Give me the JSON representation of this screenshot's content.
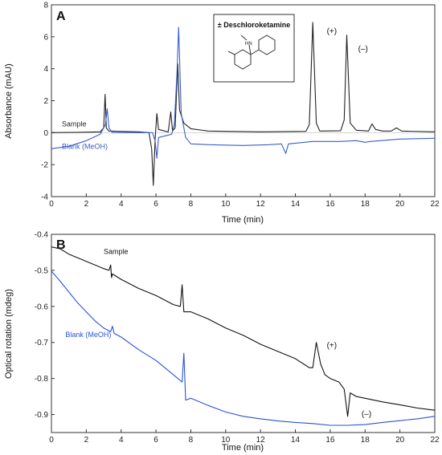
{
  "chart_data": [
    {
      "panel_label": "A",
      "type": "line",
      "xlabel": "Time (min)",
      "ylabel": "Absorbance (mAU)",
      "xlim": [
        0,
        22
      ],
      "ylim": [
        -4,
        8
      ],
      "xticks": [
        0,
        2,
        4,
        6,
        8,
        10,
        12,
        14,
        16,
        18,
        20,
        22
      ],
      "yticks": [
        -4,
        -2,
        0,
        2,
        4,
        6,
        8
      ],
      "grid": false,
      "inset_title": "± Deschloroketamine",
      "inset_atom_label": "HN",
      "annotations": [
        {
          "text": "(+)",
          "x": 15.8,
          "y": 6.2
        },
        {
          "text": "(–)",
          "x": 17.6,
          "y": 5.1
        }
      ],
      "series": [
        {
          "name": "Sample",
          "color": "#222222",
          "label_pos": [
            0.6,
            0.4
          ],
          "points": [
            [
              0,
              0
            ],
            [
              1.5,
              0.02
            ],
            [
              2.8,
              0.05
            ],
            [
              3.0,
              0.3
            ],
            [
              3.08,
              2.4
            ],
            [
              3.15,
              0.3
            ],
            [
              3.3,
              0.1
            ],
            [
              5.0,
              0.05
            ],
            [
              5.6,
              0.0
            ],
            [
              5.75,
              -1.0
            ],
            [
              5.85,
              -3.3
            ],
            [
              5.95,
              -0.4
            ],
            [
              6.05,
              1.2
            ],
            [
              6.15,
              0.2
            ],
            [
              6.7,
              0.05
            ],
            [
              6.85,
              1.3
            ],
            [
              6.95,
              0.1
            ],
            [
              7.1,
              0.3
            ],
            [
              7.25,
              4.3
            ],
            [
              7.35,
              1.4
            ],
            [
              7.6,
              0.6
            ],
            [
              8.0,
              0.25
            ],
            [
              9.0,
              0.1
            ],
            [
              12.0,
              0.05
            ],
            [
              14.6,
              0.08
            ],
            [
              14.8,
              0.5
            ],
            [
              15.0,
              6.9
            ],
            [
              15.2,
              0.6
            ],
            [
              15.4,
              0.1
            ],
            [
              16.6,
              0.12
            ],
            [
              16.8,
              0.8
            ],
            [
              16.95,
              6.1
            ],
            [
              17.15,
              0.6
            ],
            [
              17.5,
              0.15
            ],
            [
              18.2,
              0.1
            ],
            [
              18.4,
              0.55
            ],
            [
              18.6,
              0.2
            ],
            [
              19.0,
              0.1
            ],
            [
              19.5,
              0.1
            ],
            [
              19.8,
              0.3
            ],
            [
              20.1,
              0.1
            ],
            [
              22,
              0.05
            ]
          ]
        },
        {
          "name": "Blank (MeOH)",
          "color": "#3a5fc8",
          "label_pos": [
            0.6,
            -1.0
          ],
          "points": [
            [
              0,
              -1.0
            ],
            [
              1.0,
              -0.85
            ],
            [
              2.0,
              -0.5
            ],
            [
              2.8,
              -0.1
            ],
            [
              3.1,
              0.5
            ],
            [
              3.2,
              1.5
            ],
            [
              3.3,
              0.3
            ],
            [
              3.5,
              0.0
            ],
            [
              5.8,
              0.0
            ],
            [
              5.95,
              -0.5
            ],
            [
              6.05,
              -1.6
            ],
            [
              6.15,
              -0.3
            ],
            [
              6.9,
              -0.1
            ],
            [
              7.05,
              0.5
            ],
            [
              7.2,
              3.6
            ],
            [
              7.3,
              6.6
            ],
            [
              7.45,
              1.2
            ],
            [
              7.7,
              -0.3
            ],
            [
              8.0,
              -0.7
            ],
            [
              9.0,
              -0.75
            ],
            [
              11.0,
              -0.8
            ],
            [
              12.5,
              -0.75
            ],
            [
              13.2,
              -0.7
            ],
            [
              13.45,
              -1.3
            ],
            [
              13.6,
              -0.7
            ],
            [
              15.0,
              -0.55
            ],
            [
              16.5,
              -0.55
            ],
            [
              17.5,
              -0.5
            ],
            [
              18.0,
              -0.6
            ],
            [
              18.3,
              -0.55
            ],
            [
              20.0,
              -0.4
            ],
            [
              22,
              -0.35
            ]
          ]
        }
      ]
    },
    {
      "panel_label": "B",
      "type": "line",
      "xlabel": "Time (min)",
      "ylabel": "Optical rotation (mdeg)",
      "xlim": [
        0,
        22
      ],
      "ylim": [
        -0.95,
        -0.4
      ],
      "xticks": [
        0,
        2,
        4,
        6,
        8,
        10,
        12,
        14,
        16,
        18,
        20,
        22
      ],
      "yticks": [
        -0.9,
        -0.8,
        -0.7,
        -0.6,
        -0.5,
        -0.4
      ],
      "grid": false,
      "annotations": [
        {
          "text": "(+)",
          "x": 15.8,
          "y": -0.715
        },
        {
          "text": "(–)",
          "x": 17.8,
          "y": -0.905
        }
      ],
      "series": [
        {
          "name": "Sample",
          "color": "#111111",
          "label_pos": [
            3.0,
            -0.455
          ],
          "points": [
            [
              0,
              -0.435
            ],
            [
              0.5,
              -0.44
            ],
            [
              1.0,
              -0.455
            ],
            [
              2.0,
              -0.475
            ],
            [
              3.0,
              -0.495
            ],
            [
              3.3,
              -0.5
            ],
            [
              3.4,
              -0.485
            ],
            [
              3.45,
              -0.52
            ],
            [
              3.5,
              -0.51
            ],
            [
              4.0,
              -0.525
            ],
            [
              5.0,
              -0.55
            ],
            [
              6.0,
              -0.57
            ],
            [
              7.0,
              -0.595
            ],
            [
              7.4,
              -0.6
            ],
            [
              7.5,
              -0.54
            ],
            [
              7.6,
              -0.615
            ],
            [
              8.0,
              -0.615
            ],
            [
              9.0,
              -0.635
            ],
            [
              10.0,
              -0.66
            ],
            [
              11.0,
              -0.68
            ],
            [
              12.0,
              -0.705
            ],
            [
              13.0,
              -0.725
            ],
            [
              14.0,
              -0.745
            ],
            [
              14.8,
              -0.77
            ],
            [
              15.0,
              -0.77
            ],
            [
              15.2,
              -0.7
            ],
            [
              15.45,
              -0.76
            ],
            [
              15.7,
              -0.79
            ],
            [
              16.0,
              -0.8
            ],
            [
              16.5,
              -0.81
            ],
            [
              16.8,
              -0.83
            ],
            [
              17.0,
              -0.905
            ],
            [
              17.15,
              -0.84
            ],
            [
              17.5,
              -0.85
            ],
            [
              18.0,
              -0.855
            ],
            [
              19.0,
              -0.865
            ],
            [
              20.0,
              -0.873
            ],
            [
              21.0,
              -0.882
            ],
            [
              22,
              -0.888
            ]
          ]
        },
        {
          "name": "Blank (MeOH)",
          "color": "#2a52d6",
          "label_pos": [
            0.8,
            -0.685
          ],
          "points": [
            [
              0,
              -0.502
            ],
            [
              0.5,
              -0.53
            ],
            [
              1.0,
              -0.56
            ],
            [
              1.5,
              -0.59
            ],
            [
              2.0,
              -0.615
            ],
            [
              2.5,
              -0.64
            ],
            [
              3.0,
              -0.66
            ],
            [
              3.4,
              -0.67
            ],
            [
              3.5,
              -0.655
            ],
            [
              3.6,
              -0.675
            ],
            [
              4.0,
              -0.685
            ],
            [
              5.0,
              -0.72
            ],
            [
              6.0,
              -0.75
            ],
            [
              7.0,
              -0.79
            ],
            [
              7.5,
              -0.81
            ],
            [
              7.6,
              -0.73
            ],
            [
              7.7,
              -0.86
            ],
            [
              8.0,
              -0.855
            ],
            [
              9.0,
              -0.875
            ],
            [
              10.0,
              -0.893
            ],
            [
              11.0,
              -0.905
            ],
            [
              12.0,
              -0.912
            ],
            [
              13.0,
              -0.918
            ],
            [
              14.0,
              -0.922
            ],
            [
              15.0,
              -0.925
            ],
            [
              16.0,
              -0.93
            ],
            [
              17.0,
              -0.93
            ],
            [
              18.0,
              -0.928
            ],
            [
              19.0,
              -0.922
            ],
            [
              20.0,
              -0.917
            ],
            [
              21.0,
              -0.912
            ],
            [
              22,
              -0.905
            ]
          ]
        }
      ]
    }
  ]
}
